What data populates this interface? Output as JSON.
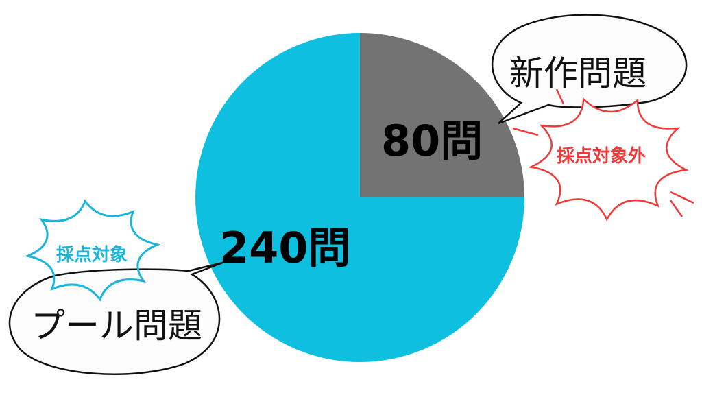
{
  "chart_data": {
    "type": "pie",
    "start_angle": "12 o'clock, clockwise",
    "slices": [
      {
        "label": "新作問題",
        "value": 80,
        "value_label": "80問",
        "color": "#737373",
        "status": "採点対象外",
        "status_color": "#F03A3A"
      },
      {
        "label": "プール問題",
        "value": 240,
        "value_label": "240問",
        "color": "#0EBFE0",
        "status": "採点対象",
        "status_color": "#1BB5DC"
      }
    ]
  }
}
